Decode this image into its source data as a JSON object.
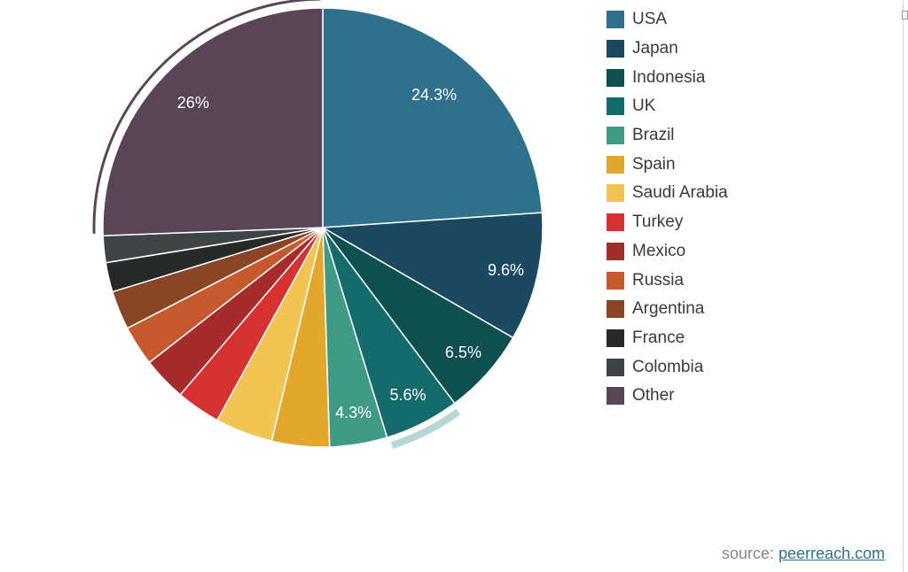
{
  "chart_data": {
    "type": "pie",
    "slices": [
      {
        "label": "USA",
        "value": 24.3,
        "color": "#2f718c",
        "data_label": "24.3%"
      },
      {
        "label": "Japan",
        "value": 9.6,
        "color": "#1b4962",
        "data_label": "9.6%"
      },
      {
        "label": "Indonesia",
        "value": 6.5,
        "color": "#0e5050",
        "data_label": "6.5%"
      },
      {
        "label": "UK",
        "value": 5.6,
        "color": "#146b6b",
        "data_label": "5.6%"
      },
      {
        "label": "Brazil",
        "value": 4.3,
        "color": "#3f9a86",
        "data_label": "4.3%"
      },
      {
        "label": "Spain",
        "value": 4.3,
        "color": "#e2a82d",
        "data_label": ""
      },
      {
        "label": "Saudi Arabia",
        "value": 4.3,
        "color": "#f2c453",
        "data_label": ""
      },
      {
        "label": "Turkey",
        "value": 3.3,
        "color": "#d83131",
        "data_label": ""
      },
      {
        "label": "Mexico",
        "value": 3.3,
        "color": "#a82b2b",
        "data_label": ""
      },
      {
        "label": "Russia",
        "value": 3.0,
        "color": "#c65a2e",
        "data_label": ""
      },
      {
        "label": "Argentina",
        "value": 2.9,
        "color": "#8a4525",
        "data_label": ""
      },
      {
        "label": "France",
        "value": 2.2,
        "color": "#272a28",
        "data_label": ""
      },
      {
        "label": "Colombia",
        "value": 2.0,
        "color": "#3f4446",
        "data_label": ""
      },
      {
        "label": "Other",
        "value": 26.0,
        "color": "#5a4558",
        "data_label": "26%"
      }
    ],
    "highlight_colors": {
      "UK": "#b7d7d6",
      "Other": "#5a4558"
    }
  },
  "source": {
    "prefix": "source: ",
    "link_text": "peerreach.com"
  }
}
